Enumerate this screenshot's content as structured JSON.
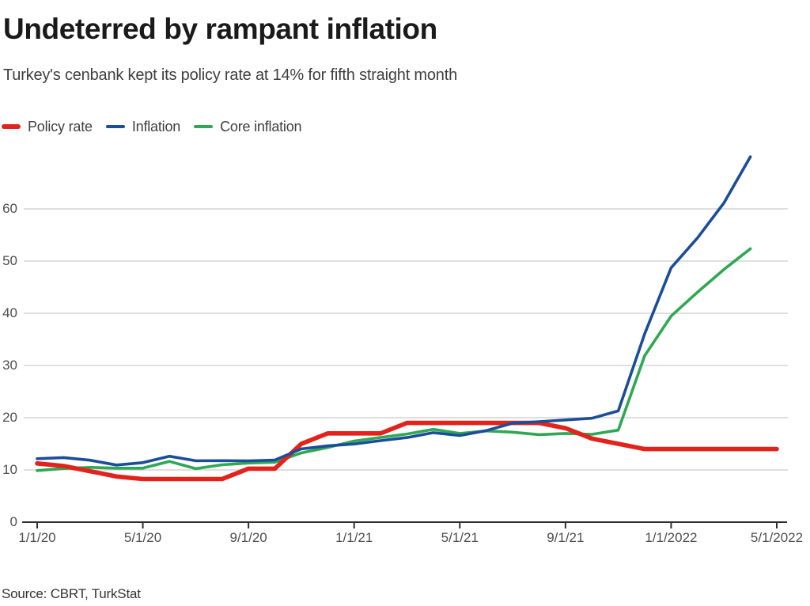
{
  "header": {
    "title": "Undeterred by rampant inflation",
    "subtitle": "Turkey's cenbank kept its policy rate at 14% for fifth straight month"
  },
  "legend": {
    "items": [
      {
        "label": "Policy rate",
        "color": "#e2231b",
        "style": "thick"
      },
      {
        "label": "Inflation",
        "color": "#1b4d99",
        "style": "thin"
      },
      {
        "label": "Core inflation",
        "color": "#2ea853",
        "style": "thin"
      }
    ]
  },
  "source": {
    "text": "Source: CBRT, TurkStat"
  },
  "chart_data": {
    "type": "line",
    "title": "Undeterred by rampant inflation",
    "subtitle": "Turkey's cenbank kept its policy rate at 14% for fifth straight month",
    "x_unit": "monthly, Jan 2020 - May 2022",
    "x_months": [
      "1/20",
      "2/20",
      "3/20",
      "4/20",
      "5/20",
      "6/20",
      "7/20",
      "8/20",
      "9/20",
      "10/20",
      "11/20",
      "12/20",
      "1/21",
      "2/21",
      "3/21",
      "4/21",
      "5/21",
      "6/21",
      "7/21",
      "8/21",
      "9/21",
      "10/21",
      "11/21",
      "12/21",
      "1/22",
      "2/22",
      "3/22",
      "4/22",
      "5/22"
    ],
    "x_tick_positions": [
      0,
      4,
      8,
      12,
      16,
      20,
      24,
      28
    ],
    "x_tick_labels": [
      "1/1/20",
      "5/1/20",
      "9/1/20",
      "1/1/21",
      "5/1/21",
      "9/1/21",
      "1/1/2022",
      "5/1/2022"
    ],
    "y_ticks": [
      0,
      10,
      20,
      30,
      40,
      50,
      60
    ],
    "ylim": [
      0,
      70.5
    ],
    "grid": "horizontal",
    "legend_position": "top-left",
    "series": [
      {
        "name": "Policy rate",
        "color": "#e2231b",
        "stroke_width": 5.6,
        "values": [
          11.25,
          10.75,
          9.75,
          8.75,
          8.25,
          8.25,
          8.25,
          8.25,
          10.25,
          10.25,
          15.0,
          17.0,
          17.0,
          17.0,
          19.0,
          19.0,
          19.0,
          19.0,
          19.0,
          19.0,
          18.0,
          16.0,
          15.0,
          14.0,
          14.0,
          14.0,
          14.0,
          14.0,
          14.0
        ]
      },
      {
        "name": "Inflation",
        "color": "#1b4d99",
        "stroke_width": 3.6,
        "values": [
          12.15,
          12.37,
          11.86,
          10.94,
          11.39,
          12.62,
          11.76,
          11.77,
          11.75,
          11.89,
          14.03,
          14.6,
          14.97,
          15.61,
          16.19,
          17.14,
          16.59,
          17.53,
          18.95,
          19.25,
          19.58,
          19.89,
          21.31,
          36.08,
          48.69,
          54.44,
          61.14,
          69.97
        ]
      },
      {
        "name": "Core inflation",
        "color": "#2ea853",
        "stroke_width": 3.6,
        "values": [
          9.88,
          10.27,
          10.48,
          10.34,
          10.33,
          11.64,
          10.25,
          10.98,
          11.32,
          11.48,
          13.26,
          14.31,
          15.53,
          16.21,
          16.88,
          17.77,
          16.99,
          17.47,
          17.22,
          16.76,
          16.98,
          16.82,
          17.62,
          31.88,
          39.45,
          44.05,
          48.39,
          52.37
        ]
      }
    ]
  }
}
